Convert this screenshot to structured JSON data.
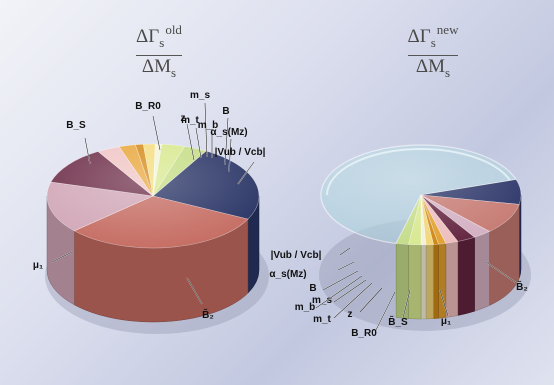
{
  "chart_data": [
    {
      "type": "pie",
      "title": {
        "numerator": "ΔΓ",
        "num_sub": "s",
        "num_sup": "old",
        "denominator": "ΔM",
        "den_sub": "s"
      },
      "slices": [
        {
          "label": "B̃₂",
          "value": 24,
          "color": "#293465"
        },
        {
          "label": "μ₁",
          "value": 31,
          "color": "#c56c62"
        },
        {
          "label": "B_S",
          "value": 16,
          "color": "#d1a6b6"
        },
        {
          "label": "B_R0",
          "value": 12,
          "color": "#6d2d48"
        },
        {
          "label": "z",
          "value": 3.5,
          "color": "#f0c4c4"
        },
        {
          "label": "m_t",
          "value": 2.5,
          "color": "#e8a63a"
        },
        {
          "label": "m_s",
          "value": 1.2,
          "color": "#d58a18"
        },
        {
          "label": "m_b",
          "value": 1.8,
          "color": "#f3dc7d"
        },
        {
          "label": "B",
          "value": 1.0,
          "color": "#f4f4d8"
        },
        {
          "label": "α_s(Mz)",
          "value": 3.5,
          "color": "#d8e88f"
        },
        {
          "label": "|Vub / Vcb|",
          "value": 3.5,
          "color": "#c5dd84"
        }
      ]
    },
    {
      "type": "pie",
      "title": {
        "numerator": "ΔΓ",
        "num_sub": "s",
        "num_sup": "new",
        "denominator": "ΔM",
        "den_sub": "s"
      },
      "slices": [
        {
          "label": "B̃₂",
          "value": 8,
          "color": "#2b3568"
        },
        {
          "label": "μ₁",
          "value": 10,
          "color": "#c67a72"
        },
        {
          "label": "B̃_S",
          "value": 3,
          "color": "#d3b0c2"
        },
        {
          "label": "B_R0",
          "value": 3,
          "color": "#63243f"
        },
        {
          "label": "z",
          "value": 2,
          "color": "#eebdbd"
        },
        {
          "label": "m_t",
          "value": 1.2,
          "color": "#e1a030"
        },
        {
          "label": "m_s",
          "value": 0.8,
          "color": "#cf8614"
        },
        {
          "label": "m_b",
          "value": 1.2,
          "color": "#f2d678"
        },
        {
          "label": "B",
          "value": 0.8,
          "color": "#f3f1d8"
        },
        {
          "label": "α_s(Mz)",
          "value": 2,
          "color": "#d8e890"
        },
        {
          "label": "|Vub / Vcb|",
          "value": 2,
          "color": "#c4dc8a"
        },
        {
          "label": "",
          "value": 66,
          "color": "#a8d2dc"
        }
      ]
    }
  ]
}
